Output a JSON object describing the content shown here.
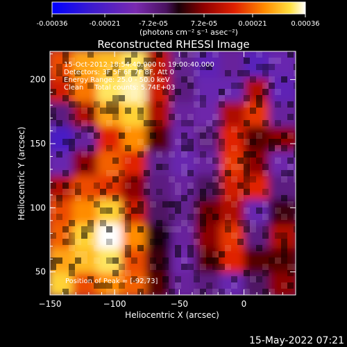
{
  "colors": {
    "background": "#000000",
    "foreground": "#ffffff",
    "colormap": [
      "#0000ff",
      "#3a1ad0",
      "#7a2ab0",
      "#6b1f8c",
      "#1a0008",
      "#7a0000",
      "#d01000",
      "#ff6a00",
      "#ffb000",
      "#ffff80",
      "#ffffff"
    ]
  },
  "colorbar": {
    "tick_labels": [
      "-0.00036",
      "-0.00021",
      "-7.2e-05",
      "7.2e-05",
      "0.00021",
      "0.00036"
    ],
    "tick_values": [
      -0.00036,
      -0.00021,
      -7.2e-05,
      7.2e-05,
      0.00021,
      0.00036
    ],
    "range": [
      -0.00036,
      0.00036
    ],
    "unit_label": "(photons cm⁻² s⁻¹ asec⁻²)"
  },
  "annotations": {
    "time": "15-Oct-2012 18:54:40.000 to 19:00:40.000",
    "detectors": "Detectors: 3F 5F 6F 7F 8F, Att 0",
    "energy": "Energy Range: 25.0 - 50.0 keV",
    "method": "Clean     Total counts: 5.74E+03",
    "peak": "Position of Peak = [-92,73]"
  },
  "footer_date": "15-May-2022 07:21",
  "chart_data": {
    "type": "heatmap",
    "title": "Reconstructed RHESSI Image",
    "xlabel": "Heliocentric X (arcsec)",
    "ylabel": "Heliocentric Y (arcsec)",
    "xlim": [
      -150,
      40
    ],
    "ylim": [
      32,
      222
    ],
    "x_ticks": [
      -150,
      -100,
      -50,
      0
    ],
    "y_ticks": [
      50,
      100,
      150,
      200
    ],
    "x_tick_labels": [
      "−150",
      "−100",
      "−50",
      "0"
    ],
    "y_tick_labels": [
      "50",
      "100",
      "150",
      "200"
    ],
    "peak_position": [
      -92,
      73
    ],
    "intensity_grid": {
      "x_start": -150,
      "y_start": 32,
      "cell": 19,
      "cols": 10,
      "rows": 10,
      "values": [
        [
          0.85,
          0.55,
          0.7,
          0.6,
          0.1,
          -0.3,
          -0.2,
          -0.4,
          -0.1,
          0.2
        ],
        [
          0.75,
          0.8,
          0.9,
          0.55,
          0.05,
          -0.35,
          0.1,
          0.45,
          0.1,
          0.1
        ],
        [
          0.6,
          0.85,
          1.0,
          0.7,
          0.0,
          -0.3,
          0.2,
          0.5,
          -0.2,
          0.3
        ],
        [
          0.55,
          0.7,
          0.85,
          0.4,
          -0.1,
          -0.25,
          0.15,
          0.3,
          -0.4,
          0.05
        ],
        [
          0.3,
          0.55,
          0.5,
          0.2,
          -0.2,
          -0.3,
          -0.1,
          0.4,
          0.45,
          -0.2
        ],
        [
          -0.4,
          0.2,
          0.6,
          0.45,
          -0.25,
          -0.4,
          -0.3,
          0.5,
          0.2,
          -0.35
        ],
        [
          -0.6,
          -0.3,
          0.45,
          0.7,
          0.1,
          -0.35,
          -0.2,
          0.45,
          0.1,
          0.2
        ],
        [
          -0.2,
          0.3,
          0.75,
          0.85,
          0.3,
          -0.3,
          -0.35,
          0.3,
          0.5,
          -0.3
        ],
        [
          0.4,
          0.65,
          0.9,
          0.95,
          0.4,
          -0.2,
          -0.4,
          -0.4,
          0.3,
          -0.45
        ],
        [
          0.55,
          0.75,
          0.8,
          0.9,
          0.35,
          -0.25,
          -0.45,
          -0.3,
          -0.5,
          -0.4
        ]
      ]
    }
  }
}
